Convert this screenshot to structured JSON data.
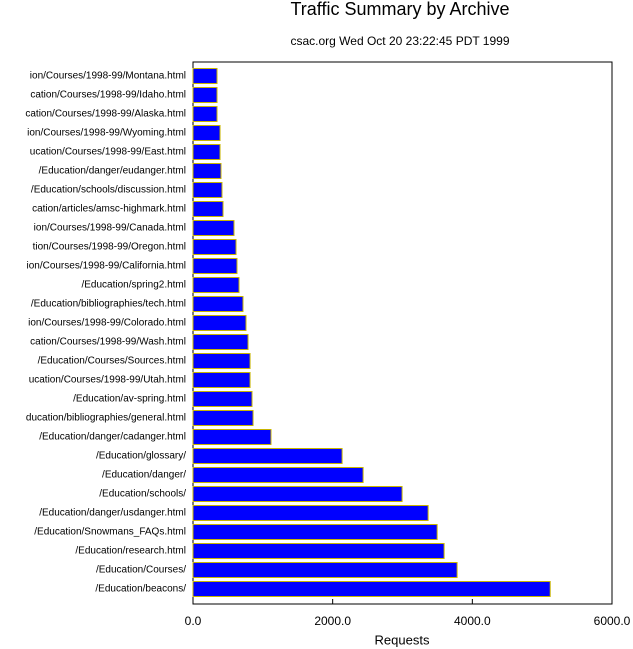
{
  "chart_data": {
    "type": "hbar",
    "title": "Traffic Summary by Archive",
    "subtitle": "csac.org Wed Oct 20 23:22:45 PDT 1999",
    "x_label": "Requests",
    "categories": [
      "ion/Courses/1998-99/Montana.html",
      "cation/Courses/1998-99/Idaho.html",
      "cation/Courses/1998-99/Alaska.html",
      "ion/Courses/1998-99/Wyoming.html",
      "ucation/Courses/1998-99/East.html",
      "/Education/danger/eudanger.html",
      "/Education/schools/discussion.html",
      "cation/articles/amsc-highmark.html",
      "ion/Courses/1998-99/Canada.html",
      "tion/Courses/1998-99/Oregon.html",
      "ion/Courses/1998-99/California.html",
      "/Education/spring2.html",
      "/Education/bibliographies/tech.html",
      "ion/Courses/1998-99/Colorado.html",
      "cation/Courses/1998-99/Wash.html",
      "/Education/Courses/Sources.html",
      "ucation/Courses/1998-99/Utah.html",
      "/Education/av-spring.html",
      "ducation/bibliographies/general.html",
      "/Education/danger/cadanger.html",
      "/Education/glossary/",
      "/Education/danger/",
      "/Education/schools/",
      "/Education/danger/usdanger.html",
      "/Education/Snowmans_FAQs.html",
      "/Education/research.html",
      "/Education/Courses/",
      "/Education/beacons/"
    ],
    "values": [
      344,
      344,
      344,
      387,
      387,
      401,
      415,
      430,
      587,
      616,
      630,
      659,
      716,
      759,
      788,
      817,
      817,
      845,
      860,
      1117,
      2135,
      2436,
      2994,
      3367,
      3496,
      3596,
      3782,
      5115
    ],
    "color": "#0000ff",
    "edge_color": "#c8b400",
    "xlim": [
      0,
      6000
    ],
    "xticks": [
      {
        "value": 0,
        "label": "0.0"
      },
      {
        "value": 2000,
        "label": "2000.0"
      },
      {
        "value": 4000,
        "label": "4000.0"
      },
      {
        "value": 6000,
        "label": "6000.0"
      }
    ]
  }
}
